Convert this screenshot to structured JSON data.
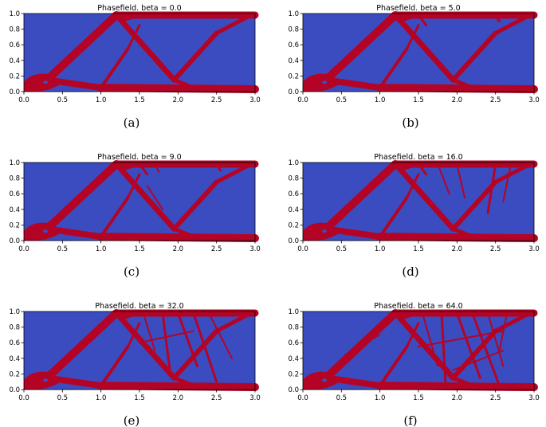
{
  "chart_data": [
    {
      "type": "heatmap",
      "title": "Phasefield. beta = 0.0",
      "caption": "(a)",
      "xlim": [
        0.0,
        3.0
      ],
      "ylim": [
        0.0,
        1.0
      ],
      "xticks": [
        "0.0",
        "0.5",
        "1.0",
        "1.5",
        "2.0",
        "2.5",
        "3.0"
      ],
      "yticks": [
        "0.0",
        "0.2",
        "0.4",
        "0.6",
        "0.8",
        "1.0"
      ],
      "colormap": {
        "void": "#3b4cc0",
        "material": "#b40426"
      }
    },
    {
      "type": "heatmap",
      "title": "Phasefield. beta = 5.0",
      "caption": "(b)",
      "xlim": [
        0.0,
        3.0
      ],
      "ylim": [
        0.0,
        1.0
      ],
      "xticks": [
        "0.0",
        "0.5",
        "1.0",
        "1.5",
        "2.0",
        "2.5",
        "3.0"
      ],
      "yticks": [
        "0.0",
        "0.2",
        "0.4",
        "0.6",
        "0.8",
        "1.0"
      ],
      "colormap": {
        "void": "#3b4cc0",
        "material": "#b40426"
      }
    },
    {
      "type": "heatmap",
      "title": "Phasefield. beta = 9.0",
      "caption": "(c)",
      "xlim": [
        0.0,
        3.0
      ],
      "ylim": [
        0.0,
        1.0
      ],
      "xticks": [
        "0.0",
        "0.5",
        "1.0",
        "1.5",
        "2.0",
        "2.5",
        "3.0"
      ],
      "yticks": [
        "0.0",
        "0.2",
        "0.4",
        "0.6",
        "0.8",
        "1.0"
      ],
      "colormap": {
        "void": "#3b4cc0",
        "material": "#b40426"
      }
    },
    {
      "type": "heatmap",
      "title": "Phasefield. beta = 16.0",
      "caption": "(d)",
      "xlim": [
        0.0,
        3.0
      ],
      "ylim": [
        0.0,
        1.0
      ],
      "xticks": [
        "0.0",
        "0.5",
        "1.0",
        "1.5",
        "2.0",
        "2.5",
        "3.0"
      ],
      "yticks": [
        "0.0",
        "0.2",
        "0.4",
        "0.6",
        "0.8",
        "1.0"
      ],
      "colormap": {
        "void": "#3b4cc0",
        "material": "#b40426"
      }
    },
    {
      "type": "heatmap",
      "title": "Phasefield. beta = 32.0",
      "caption": "(e)",
      "xlim": [
        0.0,
        3.0
      ],
      "ylim": [
        0.0,
        1.0
      ],
      "xticks": [
        "0.0",
        "0.5",
        "1.0",
        "1.5",
        "2.0",
        "2.5",
        "3.0"
      ],
      "yticks": [
        "0.0",
        "0.2",
        "0.4",
        "0.6",
        "0.8",
        "1.0"
      ],
      "colormap": {
        "void": "#3b4cc0",
        "material": "#b40426"
      }
    },
    {
      "type": "heatmap",
      "title": "Phasefield. beta = 64.0",
      "caption": "(f)",
      "xlim": [
        0.0,
        3.0
      ],
      "ylim": [
        0.0,
        1.0
      ],
      "xticks": [
        "0.0",
        "0.5",
        "1.0",
        "1.5",
        "2.0",
        "2.5",
        "3.0"
      ],
      "yticks": [
        "0.0",
        "0.2",
        "0.4",
        "0.6",
        "0.8",
        "1.0"
      ],
      "colormap": {
        "void": "#3b4cc0",
        "material": "#b40426"
      }
    }
  ]
}
